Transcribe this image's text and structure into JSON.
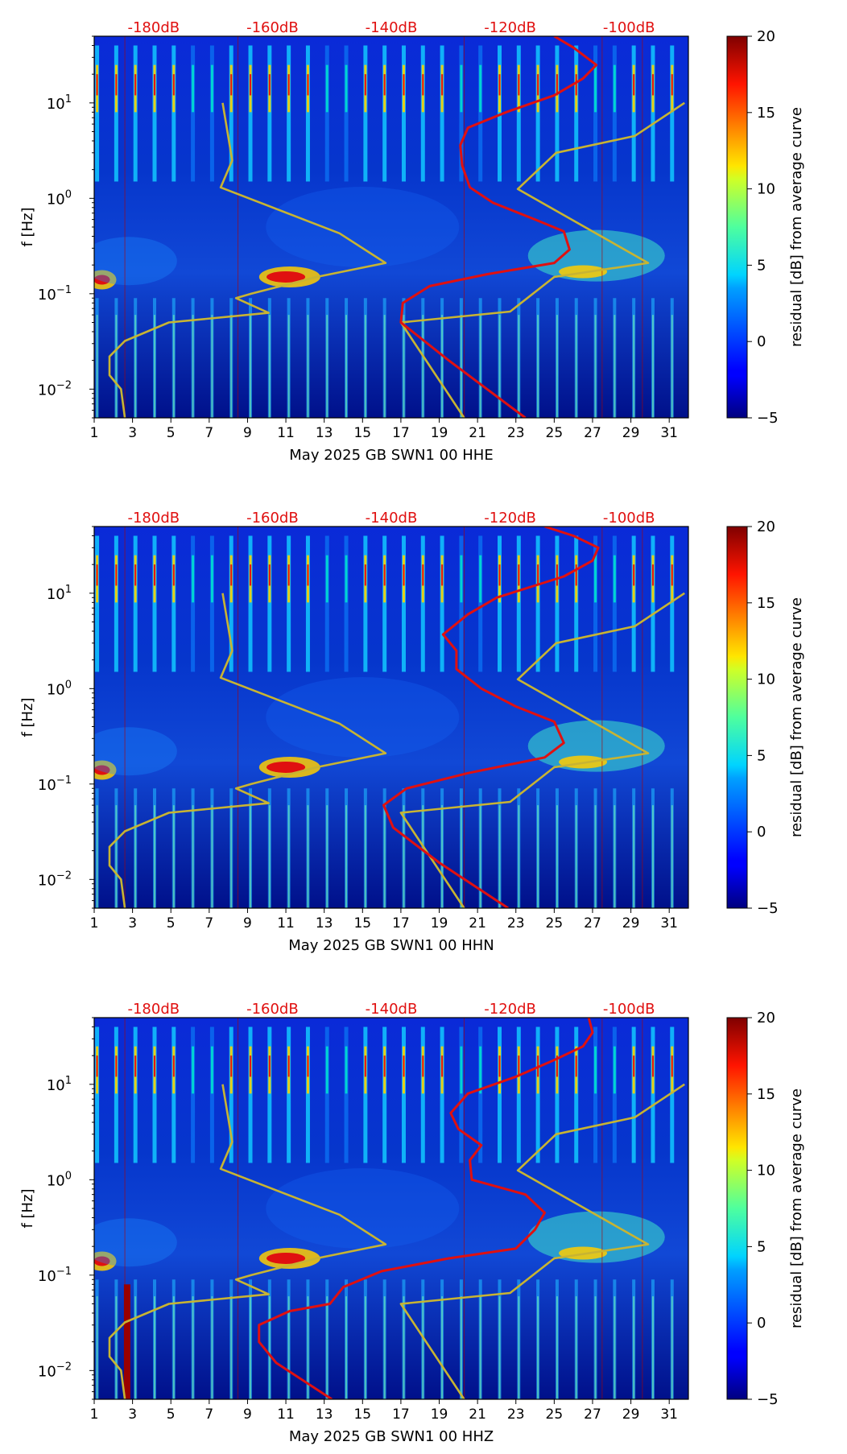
{
  "chart_data": [
    {
      "type": "heatmap",
      "channel": "HHE",
      "xlabel": "May 2025 GB SWN1 00 HHE",
      "ylabel": "f [Hz]",
      "xlim": [
        1,
        32
      ],
      "ylim": [
        0.005,
        50
      ],
      "yscale": "log",
      "x_ticks": [
        1,
        3,
        5,
        7,
        9,
        11,
        13,
        15,
        17,
        19,
        21,
        23,
        25,
        27,
        29,
        31
      ],
      "y_ticks": [
        {
          "value": 0.01,
          "base": "10",
          "exp": "−2"
        },
        {
          "value": 0.1,
          "base": "10",
          "exp": "−1"
        },
        {
          "value": 1,
          "base": "10",
          "exp": "0"
        },
        {
          "value": 10,
          "base": "10",
          "exp": "1"
        }
      ],
      "db_labels": [
        {
          "x": 4.1,
          "label": "-180dB"
        },
        {
          "x": 10.3,
          "label": "-160dB"
        },
        {
          "x": 16.5,
          "label": "-140dB"
        },
        {
          "x": 22.7,
          "label": "-120dB"
        },
        {
          "x": 28.9,
          "label": "-100dB"
        }
      ],
      "colorbar": {
        "label": "residual [dB] from average curve",
        "min": -5,
        "max": 20,
        "ticks": [
          -5,
          0,
          5,
          10,
          15,
          20
        ]
      },
      "series": [
        {
          "name": "noise model bounds (yellow)",
          "color": "#c8b432",
          "points": [
            [
              2.6,
              0.005
            ],
            [
              2.4,
              0.01
            ],
            [
              1.8,
              0.014
            ],
            [
              1.8,
              0.022
            ],
            [
              2.6,
              0.032
            ],
            [
              4.9,
              0.05
            ],
            [
              10.1,
              0.063
            ],
            [
              8.4,
              0.09
            ],
            [
              9.2,
              0.1
            ],
            [
              12.6,
              0.15
            ],
            [
              16.2,
              0.21
            ],
            [
              13.8,
              0.43
            ],
            [
              7.6,
              1.3
            ],
            [
              8.2,
              2.5
            ],
            [
              7.7,
              10
            ]
          ]
        },
        {
          "name": "noise model bounds upper (yellow)",
          "color": "#c8b432",
          "points": [
            [
              20.3,
              0.005
            ],
            [
              17.0,
              0.05
            ],
            [
              22.7,
              0.065
            ],
            [
              25.0,
              0.15
            ],
            [
              29.9,
              0.21
            ],
            [
              23.1,
              1.25
            ],
            [
              25.1,
              3.0
            ],
            [
              29.2,
              4.5
            ],
            [
              31.8,
              10
            ]
          ]
        },
        {
          "name": "average PSD (red)",
          "color": "#e01010",
          "points": [
            [
              23.5,
              0.005
            ],
            [
              19.5,
              0.02
            ],
            [
              17.0,
              0.05
            ],
            [
              17.1,
              0.08
            ],
            [
              18.5,
              0.12
            ],
            [
              21.5,
              0.16
            ],
            [
              25.0,
              0.21
            ],
            [
              25.8,
              0.29
            ],
            [
              25.5,
              0.45
            ],
            [
              24.0,
              0.6
            ],
            [
              21.8,
              0.9
            ],
            [
              20.6,
              1.3
            ],
            [
              20.2,
              2.2
            ],
            [
              20.1,
              3.6
            ],
            [
              20.5,
              5.5
            ],
            [
              22.5,
              8
            ],
            [
              25.0,
              12
            ],
            [
              26.5,
              18
            ],
            [
              27.2,
              25
            ],
            [
              26.0,
              38
            ],
            [
              25.0,
              50
            ]
          ]
        }
      ]
    },
    {
      "type": "heatmap",
      "channel": "HHN",
      "xlabel": "May 2025 GB SWN1 00 HHN",
      "ylabel": "f [Hz]",
      "xlim": [
        1,
        32
      ],
      "ylim": [
        0.005,
        50
      ],
      "yscale": "log",
      "x_ticks": [
        1,
        3,
        5,
        7,
        9,
        11,
        13,
        15,
        17,
        19,
        21,
        23,
        25,
        27,
        29,
        31
      ],
      "y_ticks": [
        {
          "value": 0.01,
          "base": "10",
          "exp": "−2"
        },
        {
          "value": 0.1,
          "base": "10",
          "exp": "−1"
        },
        {
          "value": 1,
          "base": "10",
          "exp": "0"
        },
        {
          "value": 10,
          "base": "10",
          "exp": "1"
        }
      ],
      "db_labels": [
        {
          "x": 4.1,
          "label": "-180dB"
        },
        {
          "x": 10.3,
          "label": "-160dB"
        },
        {
          "x": 16.5,
          "label": "-140dB"
        },
        {
          "x": 22.7,
          "label": "-120dB"
        },
        {
          "x": 28.9,
          "label": "-100dB"
        }
      ],
      "colorbar": {
        "label": "residual [dB] from average curve",
        "min": -5,
        "max": 20,
        "ticks": [
          -5,
          0,
          5,
          10,
          15,
          20
        ]
      },
      "series": [
        {
          "name": "noise model bounds (yellow)",
          "color": "#c8b432",
          "points": [
            [
              2.6,
              0.005
            ],
            [
              2.4,
              0.01
            ],
            [
              1.8,
              0.014
            ],
            [
              1.8,
              0.022
            ],
            [
              2.6,
              0.032
            ],
            [
              4.9,
              0.05
            ],
            [
              10.1,
              0.063
            ],
            [
              8.4,
              0.09
            ],
            [
              9.2,
              0.1
            ],
            [
              12.6,
              0.15
            ],
            [
              16.2,
              0.21
            ],
            [
              13.8,
              0.43
            ],
            [
              7.6,
              1.3
            ],
            [
              8.2,
              2.5
            ],
            [
              7.7,
              10
            ]
          ]
        },
        {
          "name": "noise model bounds upper (yellow)",
          "color": "#c8b432",
          "points": [
            [
              20.3,
              0.005
            ],
            [
              17.0,
              0.05
            ],
            [
              22.7,
              0.065
            ],
            [
              25.0,
              0.15
            ],
            [
              29.9,
              0.21
            ],
            [
              23.1,
              1.25
            ],
            [
              25.1,
              3.0
            ],
            [
              29.2,
              4.5
            ],
            [
              31.8,
              10
            ]
          ]
        },
        {
          "name": "average PSD (red)",
          "color": "#e01010",
          "points": [
            [
              22.6,
              0.005
            ],
            [
              19.0,
              0.015
            ],
            [
              16.6,
              0.035
            ],
            [
              16.1,
              0.06
            ],
            [
              17.3,
              0.09
            ],
            [
              20.5,
              0.13
            ],
            [
              24.5,
              0.19
            ],
            [
              25.5,
              0.27
            ],
            [
              25.0,
              0.45
            ],
            [
              23.0,
              0.65
            ],
            [
              21.2,
              1.0
            ],
            [
              19.9,
              1.6
            ],
            [
              19.9,
              2.5
            ],
            [
              19.2,
              3.7
            ],
            [
              20.5,
              6
            ],
            [
              22.0,
              9
            ],
            [
              25.5,
              15
            ],
            [
              27.0,
              22
            ],
            [
              27.3,
              30
            ],
            [
              26.0,
              40
            ],
            [
              24.5,
              50
            ]
          ]
        }
      ]
    },
    {
      "type": "heatmap",
      "channel": "HHZ",
      "xlabel": "May 2025 GB SWN1 00 HHZ",
      "ylabel": "f [Hz]",
      "xlim": [
        1,
        32
      ],
      "ylim": [
        0.005,
        50
      ],
      "yscale": "log",
      "x_ticks": [
        1,
        3,
        5,
        7,
        9,
        11,
        13,
        15,
        17,
        19,
        21,
        23,
        25,
        27,
        29,
        31
      ],
      "y_ticks": [
        {
          "value": 0.01,
          "base": "10",
          "exp": "−2"
        },
        {
          "value": 0.1,
          "base": "10",
          "exp": "−1"
        },
        {
          "value": 1,
          "base": "10",
          "exp": "0"
        },
        {
          "value": 10,
          "base": "10",
          "exp": "1"
        }
      ],
      "db_labels": [
        {
          "x": 4.1,
          "label": "-180dB"
        },
        {
          "x": 10.3,
          "label": "-160dB"
        },
        {
          "x": 16.5,
          "label": "-140dB"
        },
        {
          "x": 22.7,
          "label": "-120dB"
        },
        {
          "x": 28.9,
          "label": "-100dB"
        }
      ],
      "colorbar": {
        "label": "residual [dB] from average curve",
        "min": -5,
        "max": 20,
        "ticks": [
          -5,
          0,
          5,
          10,
          15,
          20
        ]
      },
      "series": [
        {
          "name": "noise model bounds (yellow)",
          "color": "#c8b432",
          "points": [
            [
              2.6,
              0.005
            ],
            [
              2.4,
              0.01
            ],
            [
              1.8,
              0.014
            ],
            [
              1.8,
              0.022
            ],
            [
              2.6,
              0.032
            ],
            [
              4.9,
              0.05
            ],
            [
              10.1,
              0.063
            ],
            [
              8.4,
              0.09
            ],
            [
              9.2,
              0.1
            ],
            [
              12.6,
              0.15
            ],
            [
              16.2,
              0.21
            ],
            [
              13.8,
              0.43
            ],
            [
              7.6,
              1.3
            ],
            [
              8.2,
              2.5
            ],
            [
              7.7,
              10
            ]
          ]
        },
        {
          "name": "noise model bounds upper (yellow)",
          "color": "#c8b432",
          "points": [
            [
              20.3,
              0.005
            ],
            [
              17.0,
              0.05
            ],
            [
              22.7,
              0.065
            ],
            [
              25.0,
              0.15
            ],
            [
              29.9,
              0.21
            ],
            [
              23.1,
              1.25
            ],
            [
              25.1,
              3.0
            ],
            [
              29.2,
              4.5
            ],
            [
              31.8,
              10
            ]
          ]
        },
        {
          "name": "average PSD (red)",
          "color": "#e01010",
          "points": [
            [
              13.4,
              0.005
            ],
            [
              10.5,
              0.012
            ],
            [
              9.6,
              0.02
            ],
            [
              9.6,
              0.03
            ],
            [
              11.2,
              0.042
            ],
            [
              13.3,
              0.05
            ],
            [
              14.0,
              0.075
            ],
            [
              16.0,
              0.11
            ],
            [
              19.5,
              0.15
            ],
            [
              23.0,
              0.19
            ],
            [
              24.0,
              0.3
            ],
            [
              24.5,
              0.45
            ],
            [
              23.5,
              0.7
            ],
            [
              20.7,
              1.0
            ],
            [
              20.6,
              1.6
            ],
            [
              21.2,
              2.3
            ],
            [
              20.0,
              3.4
            ],
            [
              19.6,
              5
            ],
            [
              20.5,
              8
            ],
            [
              23.0,
              12
            ],
            [
              25.0,
              18
            ],
            [
              26.5,
              25
            ],
            [
              27.0,
              35
            ],
            [
              26.8,
              50
            ]
          ]
        }
      ]
    }
  ]
}
